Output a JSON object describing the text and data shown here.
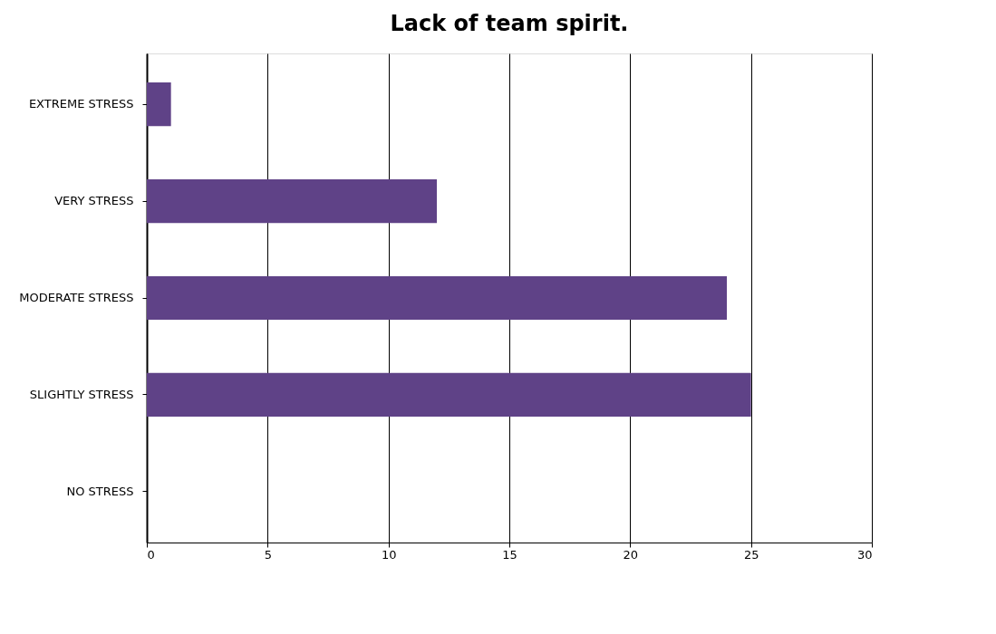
{
  "chart_data": {
    "type": "bar",
    "orientation": "horizontal",
    "title": "Lack of team spirit.",
    "categories": [
      "EXTREME STRESS",
      "VERY STRESS",
      "MODERATE STRESS",
      "SLIGHTLY STRESS",
      "NO STRESS"
    ],
    "values": [
      1,
      12,
      24,
      25,
      0
    ],
    "color": "#5f4287",
    "xlim": [
      0,
      30
    ],
    "xticks": [
      0,
      5,
      10,
      15,
      20,
      25,
      30
    ],
    "grid": "x"
  }
}
